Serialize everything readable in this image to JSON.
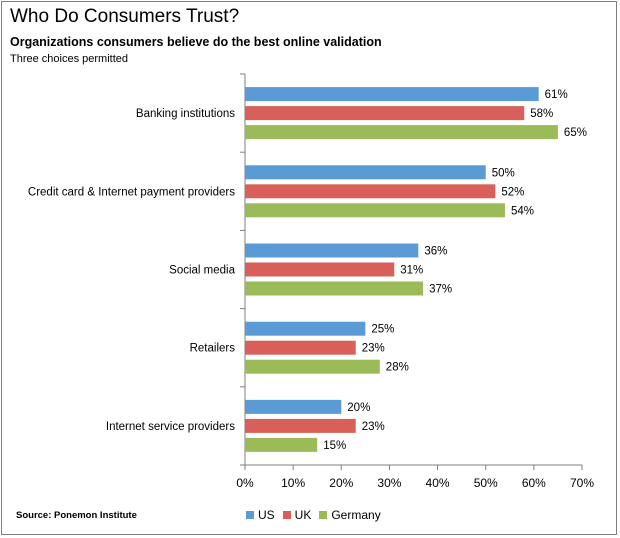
{
  "title": "Who Do Consumers Trust?",
  "subtitle": "Organizations consumers believe do the best online validation",
  "note": "Three choices permitted",
  "source": "Source: Ponemon Institute",
  "colors": {
    "US": "#5b9bd5",
    "UK": "#d9605a",
    "Germany": "#9bbb59"
  },
  "chart_data": {
    "type": "bar",
    "orientation": "horizontal",
    "title": "Who Do Consumers Trust?",
    "categories": [
      "Banking institutions",
      "Credit card & Internet payment providers",
      "Social media",
      "Retailers",
      "Internet service providers"
    ],
    "series": [
      {
        "name": "US",
        "values": [
          61,
          50,
          36,
          25,
          20
        ]
      },
      {
        "name": "UK",
        "values": [
          58,
          52,
          31,
          23,
          23
        ]
      },
      {
        "name": "Germany",
        "values": [
          65,
          54,
          37,
          28,
          15
        ]
      }
    ],
    "value_format": "percent",
    "xlim": [
      0,
      70
    ],
    "xticks": [
      "0%",
      "10%",
      "20%",
      "30%",
      "40%",
      "50%",
      "60%",
      "70%"
    ],
    "grid": false,
    "legend": "bottom"
  }
}
